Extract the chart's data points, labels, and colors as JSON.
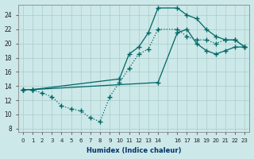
{
  "xlabel": "Humidex (Indice chaleur)",
  "background_color": "#cce8e8",
  "grid_color": "#aacccc",
  "line_color": "#006666",
  "xlim": [
    -0.5,
    23.5
  ],
  "ylim": [
    7.5,
    25.5
  ],
  "yticks": [
    8,
    10,
    12,
    14,
    16,
    18,
    20,
    22,
    24
  ],
  "xtick_labels": [
    "0",
    "1",
    "2",
    "3",
    "4",
    "5",
    "6",
    "7",
    "8",
    "9",
    "10",
    "11",
    "12",
    "13",
    "14",
    "",
    "16",
    "17",
    "18",
    "19",
    "20",
    "21",
    "22",
    "23"
  ],
  "xtick_positions": [
    0,
    1,
    2,
    3,
    4,
    5,
    6,
    7,
    8,
    9,
    10,
    11,
    12,
    13,
    14,
    15,
    16,
    17,
    18,
    19,
    20,
    21,
    22,
    23
  ],
  "series": [
    {
      "x": [
        0,
        1,
        2,
        3,
        4,
        5,
        6,
        7,
        8,
        9,
        10,
        11,
        12,
        13,
        14,
        16,
        17,
        18,
        19,
        20,
        21,
        22,
        23
      ],
      "y": [
        13.5,
        13.5,
        13.0,
        12.5,
        11.2,
        10.8,
        10.5,
        9.5,
        9.0,
        12.5,
        14.5,
        16.5,
        18.5,
        19.2,
        22.0,
        22.0,
        21.0,
        20.5,
        20.5,
        20.0,
        20.5,
        20.5,
        19.5
      ],
      "linestyle": "dotted"
    },
    {
      "x": [
        0,
        1,
        10,
        11,
        12,
        13,
        14,
        16,
        17,
        18,
        19,
        20,
        21,
        22,
        23
      ],
      "y": [
        13.5,
        13.5,
        15.0,
        18.5,
        19.5,
        21.5,
        25.0,
        25.0,
        24.0,
        23.5,
        22.0,
        21.0,
        20.5,
        20.5,
        19.5
      ],
      "linestyle": "solid"
    },
    {
      "x": [
        0,
        1,
        14,
        16,
        17,
        18,
        19,
        20,
        21,
        22,
        23
      ],
      "y": [
        13.5,
        13.5,
        14.5,
        21.5,
        22.0,
        20.0,
        19.0,
        18.5,
        19.0,
        19.5,
        19.5
      ],
      "linestyle": "solid"
    }
  ]
}
